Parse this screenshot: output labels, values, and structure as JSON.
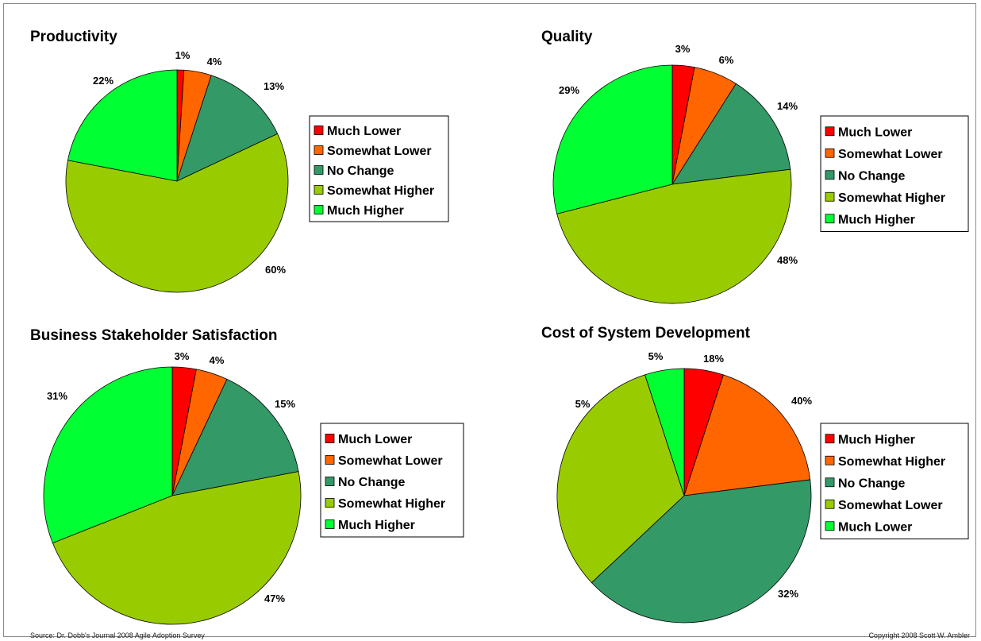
{
  "colors": {
    "red": "#ff0000",
    "orange": "#ff6600",
    "teal": "#339966",
    "yellowgreen": "#99cc00",
    "green": "#00ff33"
  },
  "footer": {
    "source": "Source: Dr. Dobb's Journal 2008 Agile Adoption Survey",
    "copyright": "Copyright 2008  Scott W. Ambler"
  },
  "chart_data": [
    {
      "type": "pie",
      "title": "Productivity",
      "categories": [
        "Much Lower",
        "Somewhat Lower",
        "No Change",
        "Somewhat Higher",
        "Much Higher"
      ],
      "values": [
        1,
        4,
        13,
        60,
        22
      ],
      "labels": [
        "1%",
        "4%",
        "13%",
        "60%",
        "22%"
      ],
      "colors": [
        "#ff0000",
        "#ff6600",
        "#339966",
        "#99cc00",
        "#00ff33"
      ],
      "legend": "right"
    },
    {
      "type": "pie",
      "title": "Quality",
      "categories": [
        "Much Lower",
        "Somewhat Lower",
        "No Change",
        "Somewhat Higher",
        "Much Higher"
      ],
      "values": [
        3,
        6,
        14,
        48,
        29
      ],
      "labels": [
        "3%",
        "6%",
        "14%",
        "48%",
        "29%"
      ],
      "colors": [
        "#ff0000",
        "#ff6600",
        "#339966",
        "#99cc00",
        "#00ff33"
      ],
      "legend": "right"
    },
    {
      "type": "pie",
      "title": "Business Stakeholder Satisfaction",
      "categories": [
        "Much Lower",
        "Somewhat Lower",
        "No Change",
        "Somewhat Higher",
        "Much Higher"
      ],
      "values": [
        3,
        4,
        15,
        47,
        31
      ],
      "labels": [
        "3%",
        "4%",
        "15%",
        "47%",
        "31%"
      ],
      "colors": [
        "#ff0000",
        "#ff6600",
        "#339966",
        "#99cc00",
        "#00ff33"
      ],
      "legend": "right"
    },
    {
      "type": "pie",
      "title": "Cost of System Development",
      "categories": [
        "Much Higher",
        "Somewhat Higher",
        "No Change",
        "Somewhat Lower",
        "Much Lower"
      ],
      "values": [
        5,
        18,
        40,
        32,
        5
      ],
      "labels": [
        "5%",
        "18%",
        "40%",
        "32%",
        "5%"
      ],
      "colors": [
        "#ff0000",
        "#ff6600",
        "#339966",
        "#99cc00",
        "#00ff33"
      ],
      "legend": "right"
    }
  ]
}
